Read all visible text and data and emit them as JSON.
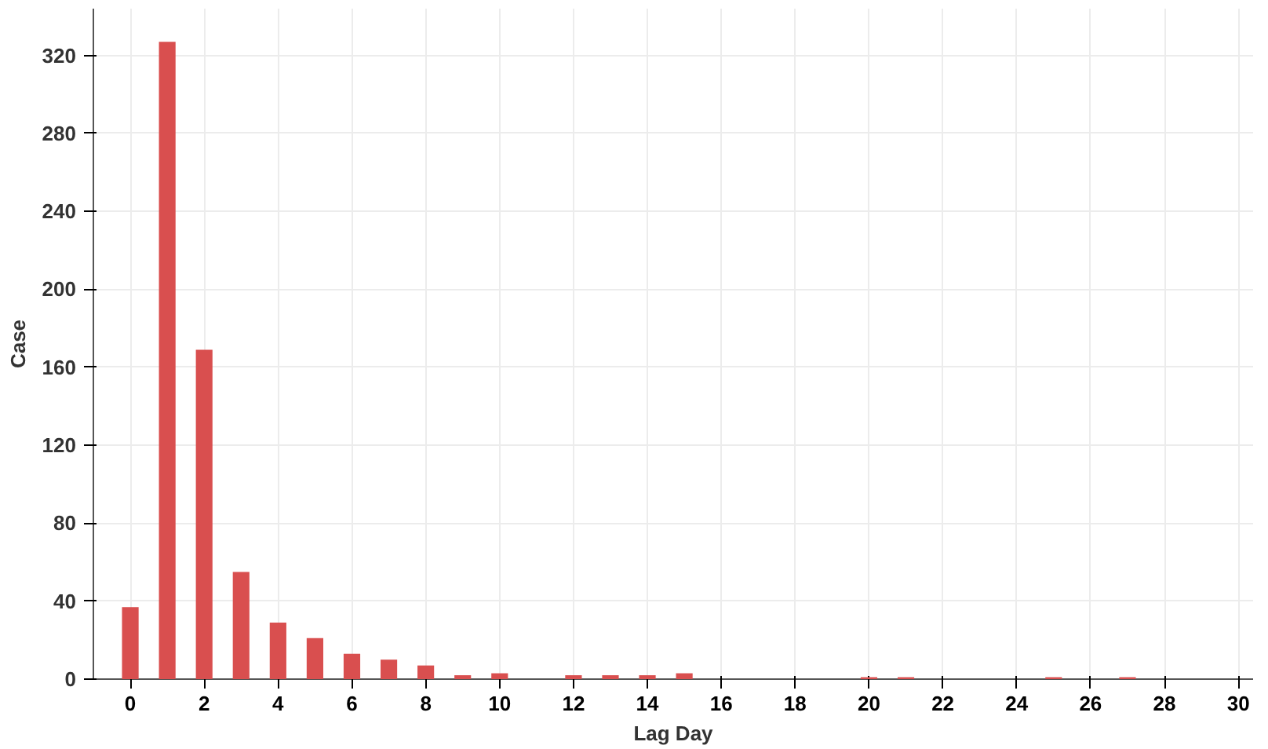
{
  "chart_data": {
    "type": "bar",
    "xlabel": "Lag Day",
    "ylabel": "Case",
    "x": [
      0,
      1,
      2,
      3,
      4,
      5,
      6,
      7,
      8,
      9,
      10,
      11,
      12,
      13,
      14,
      15,
      16,
      17,
      18,
      19,
      20,
      21,
      22,
      23,
      24,
      25,
      26,
      27
    ],
    "values": [
      37,
      327,
      169,
      55,
      29,
      21,
      13,
      10,
      7,
      2,
      3,
      0,
      2,
      2,
      2,
      3,
      0,
      0,
      0,
      0,
      1,
      1,
      0,
      0,
      0,
      1,
      0,
      1
    ],
    "color": "#d94f4f",
    "xlim": [
      -1,
      30.4
    ],
    "ylim": [
      0,
      344
    ],
    "xticks": [
      0,
      2,
      4,
      6,
      8,
      10,
      12,
      14,
      16,
      18,
      20,
      22,
      24,
      26,
      28,
      30
    ],
    "yticks": [
      0,
      40,
      80,
      120,
      160,
      200,
      240,
      280,
      320
    ],
    "grid": true
  }
}
